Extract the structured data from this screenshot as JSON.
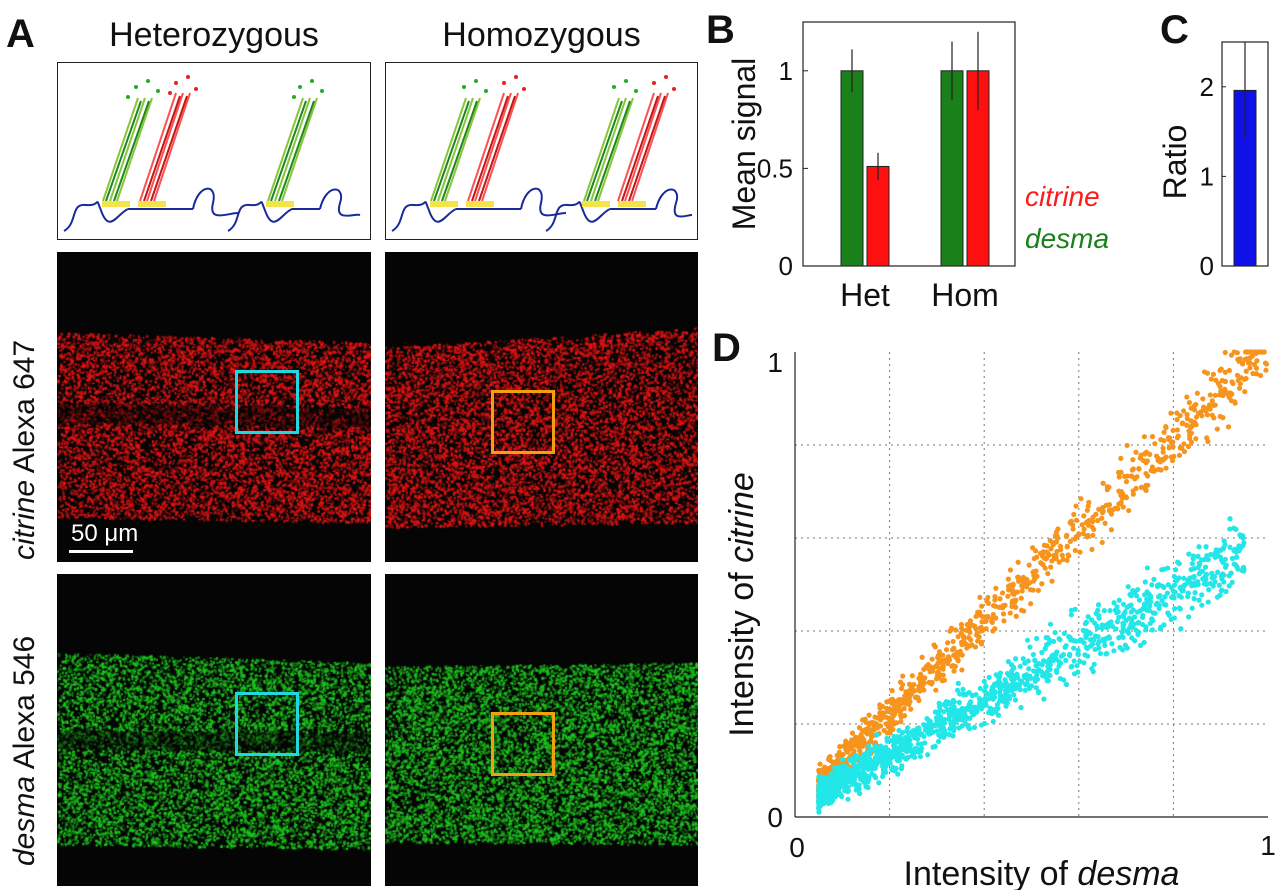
{
  "figure": {
    "panel_a": {
      "letter": "A",
      "col_titles": [
        "Heterozygous",
        "Homozygous"
      ],
      "row_label_1": {
        "gene": "citrine",
        "dye": " Alexa 647"
      },
      "row_label_2": {
        "gene": "desma",
        "dye": " Alexa 546"
      },
      "scale_bar": "50 μm",
      "colors": {
        "red_signal": "#e01010",
        "green_signal": "#18c418",
        "het_box": "#22d8e0",
        "hom_box": "#f0a010"
      }
    },
    "panel_b": {
      "letter": "B"
    },
    "panel_c": {
      "letter": "C"
    },
    "panel_d": {
      "letter": "D"
    }
  },
  "chart_data": [
    {
      "panel": "B",
      "type": "bar",
      "ylabel": "Mean signal",
      "categories": [
        "Het",
        "Hom"
      ],
      "ylim": [
        0,
        1.25
      ],
      "yticks": [
        "0",
        "0.5",
        "1"
      ],
      "series": [
        {
          "name": "desma",
          "color": "#1a801a",
          "values": [
            1.0,
            1.0
          ],
          "errors": [
            0.11,
            0.15
          ]
        },
        {
          "name": "citrine",
          "color": "#ff1010",
          "values": [
            0.51,
            1.0
          ],
          "errors": [
            0.07,
            0.2
          ]
        }
      ],
      "legend": [
        "citrine",
        "desma"
      ],
      "legend_placement": "right"
    },
    {
      "panel": "C",
      "type": "bar",
      "ylabel": "Ratio",
      "categories": [
        ""
      ],
      "ylim": [
        0,
        2.5
      ],
      "yticks": [
        "0",
        "1",
        "2"
      ],
      "series": [
        {
          "color": "#1010e8",
          "values": [
            1.96
          ],
          "errors": [
            0.54
          ]
        }
      ]
    },
    {
      "panel": "D",
      "type": "scatter",
      "xlabel_prefix": "Intensity of ",
      "xlabel_gene": "desma",
      "ylabel_prefix": "Intensity of ",
      "ylabel_gene": "citrine",
      "xlim": [
        0,
        1
      ],
      "ylim": [
        0,
        1
      ],
      "xtick_labels": [
        "0",
        "1"
      ],
      "ytick_labels": [
        "0",
        "1"
      ],
      "grid": true,
      "series": [
        {
          "color": "#f7941d",
          "trend_slope": 1.0,
          "trend_intercept": 0.02,
          "x_range": [
            0.05,
            1.0
          ],
          "n_points": 900
        },
        {
          "color": "#22e6e8",
          "trend_slope": 0.58,
          "trend_intercept": 0.02,
          "x_range": [
            0.05,
            0.95
          ],
          "n_points": 1300
        }
      ]
    }
  ]
}
